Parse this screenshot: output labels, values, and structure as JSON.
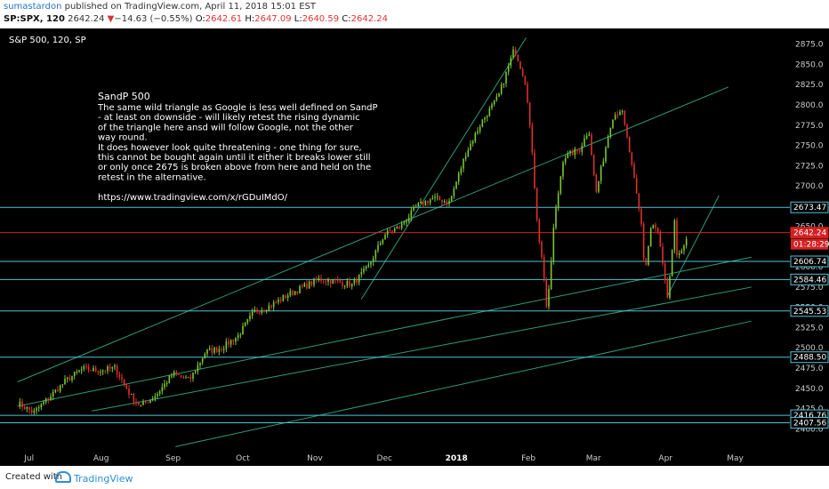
{
  "header": {
    "author": "sumastardon",
    "published": "published on TradingView.com, April 11, 2018 15:01 EST",
    "symbol": "SP:SPX, 120",
    "last": "2642.24",
    "change_arrow": "▼",
    "change": "−14.63 (−0.55%)",
    "o_label": "O:",
    "o": "2642.61",
    "h_label": "H:",
    "h": "2647.09",
    "l_label": "L:",
    "l": "2640.59",
    "c_label": "C:",
    "c": "2642.24"
  },
  "footer": {
    "created": "Created with",
    "brand": "TradingView"
  },
  "chart_data": {
    "type": "candlestick",
    "title": "S&P 500, 120, SP",
    "ylim": [
      2385,
      2890
    ],
    "y_ticks": [
      2400,
      2425,
      2450,
      2475,
      2500,
      2525,
      2550,
      2575,
      2600,
      2625,
      2650,
      2675,
      2700,
      2725,
      2750,
      2775,
      2800,
      2825,
      2850,
      2875
    ],
    "x_ticks": [
      "Jul",
      "Aug",
      "Sep",
      "Oct",
      "Nov",
      "Dec",
      "2018",
      "Feb",
      "Mar",
      "Apr",
      "May"
    ],
    "price_path": [
      [
        "2017-06-26",
        2432
      ],
      [
        "2017-07-03",
        2420
      ],
      [
        "2017-07-10",
        2440
      ],
      [
        "2017-07-17",
        2460
      ],
      [
        "2017-07-24",
        2474
      ],
      [
        "2017-07-31",
        2472
      ],
      [
        "2017-08-07",
        2475
      ],
      [
        "2017-08-14",
        2440
      ],
      [
        "2017-08-18",
        2428
      ],
      [
        "2017-08-25",
        2443
      ],
      [
        "2017-09-01",
        2468
      ],
      [
        "2017-09-08",
        2460
      ],
      [
        "2017-09-15",
        2495
      ],
      [
        "2017-09-22",
        2500
      ],
      [
        "2017-09-29",
        2515
      ],
      [
        "2017-10-06",
        2545
      ],
      [
        "2017-10-13",
        2552
      ],
      [
        "2017-10-20",
        2565
      ],
      [
        "2017-10-27",
        2575
      ],
      [
        "2017-11-03",
        2585
      ],
      [
        "2017-11-10",
        2582
      ],
      [
        "2017-11-17",
        2578
      ],
      [
        "2017-11-24",
        2600
      ],
      [
        "2017-12-01",
        2640
      ],
      [
        "2017-12-08",
        2650
      ],
      [
        "2017-12-15",
        2675
      ],
      [
        "2017-12-22",
        2685
      ],
      [
        "2017-12-29",
        2680
      ],
      [
        "2018-01-05",
        2740
      ],
      [
        "2018-01-12",
        2780
      ],
      [
        "2018-01-19",
        2810
      ],
      [
        "2018-01-26",
        2870
      ],
      [
        "2018-01-31",
        2825
      ],
      [
        "2018-02-02",
        2760
      ],
      [
        "2018-02-05",
        2648
      ],
      [
        "2018-02-08",
        2581
      ],
      [
        "2018-02-09",
        2540
      ],
      [
        "2018-02-12",
        2655
      ],
      [
        "2018-02-16",
        2735
      ],
      [
        "2018-02-23",
        2745
      ],
      [
        "2018-02-27",
        2770
      ],
      [
        "2018-03-02",
        2690
      ],
      [
        "2018-03-09",
        2785
      ],
      [
        "2018-03-13",
        2795
      ],
      [
        "2018-03-16",
        2750
      ],
      [
        "2018-03-22",
        2645
      ],
      [
        "2018-03-23",
        2590
      ],
      [
        "2018-03-26",
        2655
      ],
      [
        "2018-03-29",
        2640
      ],
      [
        "2018-04-02",
        2555
      ],
      [
        "2018-04-05",
        2662
      ],
      [
        "2018-04-06",
        2605
      ],
      [
        "2018-04-09",
        2630
      ],
      [
        "2018-04-11",
        2642
      ]
    ],
    "horizontal_levels": [
      {
        "value": 2673.47,
        "label": "2673.47",
        "color": "#4fc3d6"
      },
      {
        "value": 2642.24,
        "label": "2642.24",
        "color": "#d32020"
      },
      {
        "value": 2606.74,
        "label": "2606.74",
        "color": "#4fc3d6"
      },
      {
        "value": 2584.46,
        "label": "2584.46",
        "color": "#4fc3d6"
      },
      {
        "value": 2545.53,
        "label": "2545.53",
        "color": "#4fc3d6"
      },
      {
        "value": 2488.5,
        "label": "2488.50",
        "color": "#4fc3d6"
      },
      {
        "value": 2416.76,
        "label": "2416.76",
        "color": "#4fc3d6"
      },
      {
        "value": 2407.56,
        "label": "2407.56",
        "color": "#4fc3d6"
      }
    ],
    "countdown": "01:28:29",
    "trendlines": [
      {
        "from": [
          "2017-06-26",
          2458
        ],
        "to": [
          "2018-04-28",
          2822
        ]
      },
      {
        "from": [
          "2017-06-26",
          2428
        ],
        "to": [
          "2018-05-08",
          2612
        ]
      },
      {
        "from": [
          "2017-09-02",
          2378
        ],
        "to": [
          "2018-05-08",
          2533
        ]
      },
      {
        "from": [
          "2017-07-28",
          2422
        ],
        "to": [
          "2018-05-08",
          2575
        ]
      },
      {
        "from": [
          "2017-11-21",
          2560
        ],
        "to": [
          "2018-01-31",
          2883
        ]
      },
      {
        "from": [
          "2018-04-02",
          2565
        ],
        "to": [
          "2018-04-24",
          2688
        ]
      }
    ],
    "annotation": {
      "title": "SandP 500",
      "lines": [
        "The same wild triangle as Google is less well defined on SandP",
        " - at least on downside - will likely retest the rising dynamic",
        "of the triangle here ansd will follow Google, not the other",
        "way round.",
        "It does however look quite threatening - one thing for sure,",
        "this cannot be bought again until it either it breaks lower still",
        "or only once 2675 is broken above from here and held on the",
        "retest in the alternative.",
        "",
        "https://www.tradingview.com/x/rGDuIMdO/"
      ]
    },
    "colors": {
      "background": "#000000",
      "up": "#7cc832",
      "down": "#e0302a",
      "level": "#4fc3d6",
      "trend": "#2e9b7a",
      "text": "#ffffff",
      "axis_text": "#cccccc"
    }
  }
}
